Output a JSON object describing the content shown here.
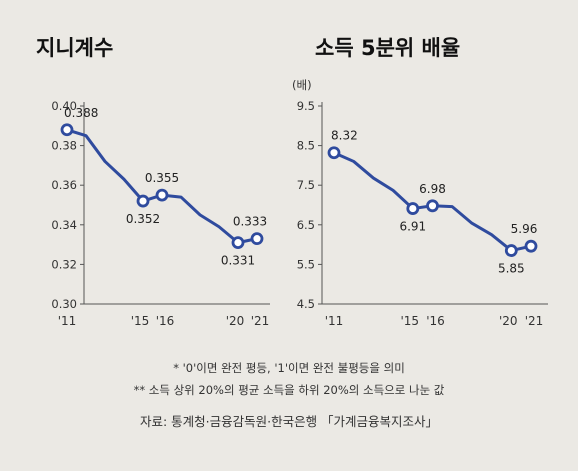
{
  "colors": {
    "line": "#2f4b9e",
    "marker_fill": "#ffffff",
    "axis": "#555555"
  },
  "chart_data": [
    {
      "type": "line",
      "title": "지니계수",
      "unit_label": "",
      "x_tick_labels": [
        "'11",
        "'15",
        "'16",
        "'20",
        "'21"
      ],
      "x": [
        2011,
        2012,
        2013,
        2014,
        2015,
        2016,
        2017,
        2018,
        2019,
        2020,
        2021
      ],
      "series": [
        {
          "values": [
            0.388,
            0.385,
            0.372,
            0.363,
            0.352,
            0.355,
            0.354,
            0.345,
            0.339,
            0.331,
            0.333
          ]
        }
      ],
      "markers_at": [
        2011,
        2015,
        2016,
        2020,
        2021
      ],
      "data_labels": [
        {
          "x": 2011,
          "text": "0.388",
          "pos": "above"
        },
        {
          "x": 2015,
          "text": "0.352",
          "pos": "below"
        },
        {
          "x": 2016,
          "text": "0.355",
          "pos": "above"
        },
        {
          "x": 2020,
          "text": "0.331",
          "pos": "below"
        },
        {
          "x": 2021,
          "text": "0.333",
          "pos": "above"
        }
      ],
      "ylim": [
        0.3,
        0.4
      ],
      "yticks": [
        "0.40",
        "0.38",
        "0.36",
        "0.34",
        "0.32",
        "0.30"
      ],
      "grid": false
    },
    {
      "type": "line",
      "title": "소득 5분위 배율",
      "unit_label": "(배)",
      "x_tick_labels": [
        "'11",
        "'15",
        "'16",
        "'20",
        "'21"
      ],
      "x": [
        2011,
        2012,
        2013,
        2014,
        2015,
        2016,
        2017,
        2018,
        2019,
        2020,
        2021
      ],
      "series": [
        {
          "values": [
            8.32,
            8.1,
            7.68,
            7.37,
            6.91,
            6.98,
            6.96,
            6.54,
            6.25,
            5.85,
            5.96
          ]
        }
      ],
      "markers_at": [
        2011,
        2015,
        2016,
        2020,
        2021
      ],
      "data_labels": [
        {
          "x": 2011,
          "text": "8.32",
          "pos": "above"
        },
        {
          "x": 2015,
          "text": "6.91",
          "pos": "below"
        },
        {
          "x": 2016,
          "text": "6.98",
          "pos": "above"
        },
        {
          "x": 2020,
          "text": "5.85",
          "pos": "below"
        },
        {
          "x": 2021,
          "text": "5.96",
          "pos": "above"
        }
      ],
      "ylim": [
        4.5,
        9.5
      ],
      "yticks": [
        "9.5",
        "8.5",
        "7.5",
        "6.5",
        "5.5",
        "4.5"
      ],
      "grid": false
    }
  ],
  "notes": {
    "note1": "* '0'이면 완전 평등, '1'이면 완전 불평등을 의미",
    "note2": "** 소득 상위 20%의 평균 소득을 하위 20%의 소득으로 나눈 값",
    "source": "자료: 통계청·금융감독원·한국은행 「가계금융복지조사」"
  }
}
